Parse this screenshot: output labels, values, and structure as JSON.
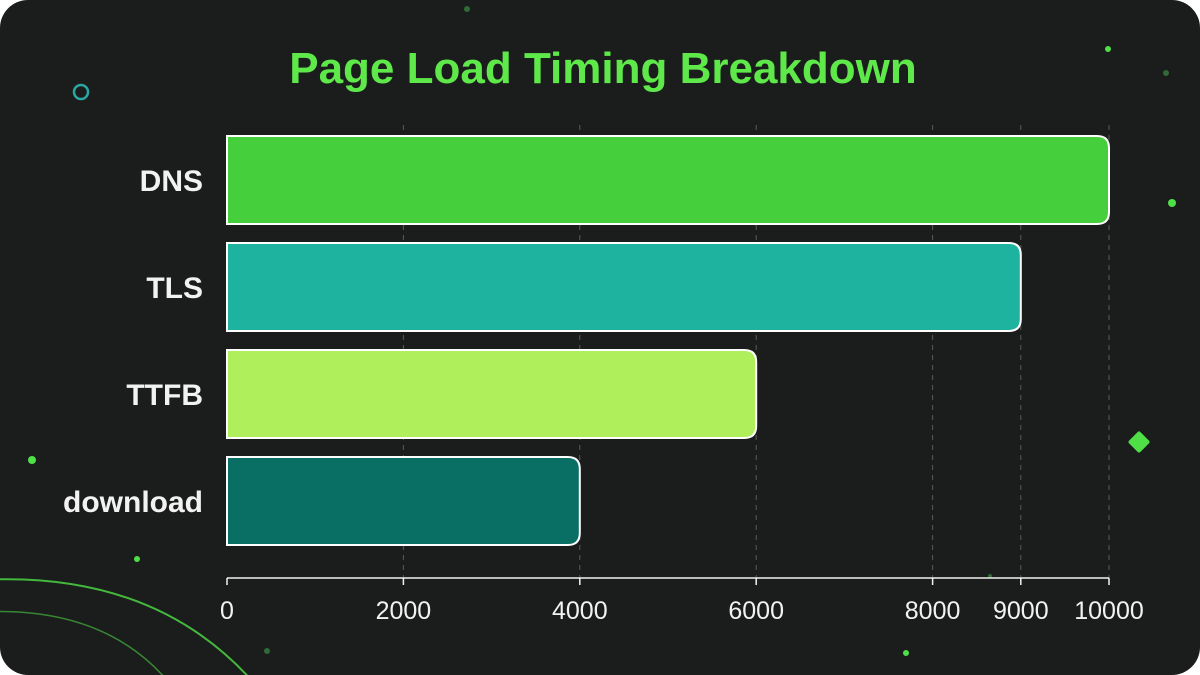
{
  "colors": {
    "background": "#1b1c1c",
    "title": "#5ee84a",
    "text": "#f2f2f2",
    "grid": "#5a5a5a",
    "bar_outline": "#ffffff",
    "accent_teal": "#2aa7a3",
    "accent_green": "#4ee046"
  },
  "chart_data": {
    "type": "bar",
    "orientation": "horizontal",
    "title": "Page Load Timing Breakdown",
    "xlabel": "",
    "ylabel": "",
    "categories": [
      "DNS",
      "TLS",
      "TTFB",
      "download"
    ],
    "values": [
      10000,
      9000,
      6000,
      4000
    ],
    "bar_colors": [
      "#46cf3c",
      "#1db39e",
      "#b0ef5c",
      "#096e63"
    ],
    "x_ticks": [
      0,
      2000,
      4000,
      6000,
      8000,
      9000,
      10000
    ],
    "x_tick_labels": [
      "0",
      "2000",
      "4000",
      "6000",
      "8000",
      "9000",
      "10000"
    ],
    "xlim": [
      0,
      10000
    ],
    "grid": true,
    "grid_style": "dashed vertical",
    "legend": "none"
  }
}
